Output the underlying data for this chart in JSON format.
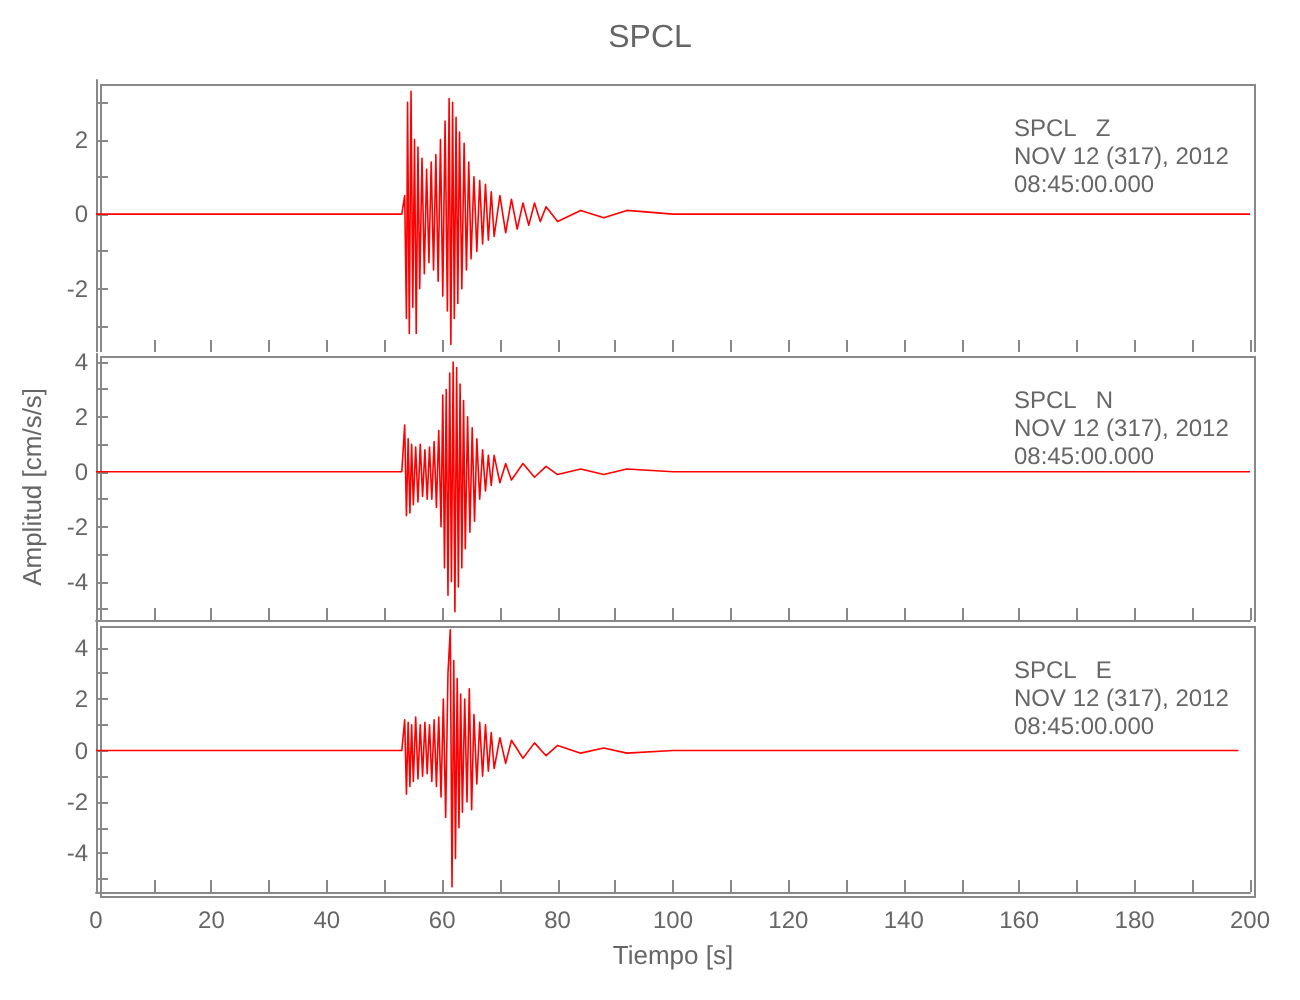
{
  "chart_data": [
    {
      "type": "line",
      "title": "SPCL",
      "color": "#ff0000",
      "marker": "none",
      "tick_labels": "y",
      "annotations": [
        "SPCL   Z",
        "NOV 12 (317), 2012",
        "08:45:00.000"
      ],
      "xlim": [
        0,
        200
      ],
      "xticks": [
        0,
        {
          "value": 10,
          "label": null
        },
        20,
        {
          "value": 30,
          "label": null
        },
        40,
        {
          "value": 50,
          "label": null
        },
        60,
        {
          "value": 70,
          "label": null
        },
        80,
        {
          "value": 90,
          "label": null
        },
        100,
        {
          "value": 110,
          "label": null
        },
        120,
        {
          "value": 130,
          "label": null
        },
        140,
        {
          "value": 150,
          "label": null
        },
        160,
        {
          "value": 170,
          "label": null
        },
        180,
        {
          "value": 190,
          "label": null
        },
        200
      ],
      "ylim": [
        -3.7,
        3.6
      ],
      "yticks": [
        {
          "value": -3,
          "label": null
        },
        -2,
        {
          "value": -1,
          "label": null
        },
        0,
        {
          "value": 1,
          "label": null
        },
        2,
        {
          "value": 3,
          "label": null
        }
      ],
      "x": [
        0,
        20,
        40,
        53,
        53.5,
        53.8,
        54,
        54.3,
        54.6,
        54.9,
        55.2,
        55.5,
        55.8,
        56.1,
        56.5,
        56.9,
        57.3,
        57.7,
        58.1,
        58.5,
        58.9,
        59.3,
        59.7,
        60.1,
        60.5,
        60.9,
        61.2,
        61.5,
        61.8,
        62.1,
        62.4,
        62.7,
        63,
        63.4,
        63.8,
        64.2,
        64.6,
        65,
        65.5,
        66,
        66.5,
        67,
        67.5,
        68,
        68.5,
        69,
        70,
        71,
        72,
        73,
        74,
        75,
        76,
        77,
        78,
        80,
        84,
        88,
        92,
        100,
        200
      ],
      "values": [
        0,
        0,
        0,
        0,
        0.5,
        -2.8,
        3.0,
        -3.2,
        3.3,
        -2.5,
        2.0,
        -3.2,
        1.8,
        -2.0,
        1.5,
        -1.6,
        1.2,
        -1.3,
        1.4,
        -1.5,
        1.6,
        -1.8,
        2.0,
        -2.2,
        2.5,
        -2.6,
        3.1,
        -3.5,
        3.0,
        -2.8,
        2.6,
        -2.4,
        2.2,
        -2.0,
        1.9,
        -1.5,
        1.4,
        -1.2,
        1.0,
        -1.0,
        0.9,
        -0.8,
        0.8,
        -0.7,
        0.6,
        -0.6,
        0.5,
        -0.5,
        0.4,
        -0.4,
        0.3,
        -0.3,
        0.3,
        -0.2,
        0.2,
        -0.2,
        0.1,
        -0.1,
        0.1,
        0,
        0
      ]
    },
    {
      "type": "line",
      "ylabel": "Amplitud [cm/s/s]",
      "color": "#ff0000",
      "marker": "none",
      "tick_labels": "y",
      "annotations": [
        "SPCL   N",
        "NOV 12 (317), 2012",
        "08:45:00.000"
      ],
      "xlim": [
        0,
        200
      ],
      "xticks": [
        0,
        {
          "value": 10,
          "label": null
        },
        20,
        {
          "value": 30,
          "label": null
        },
        40,
        {
          "value": 50,
          "label": null
        },
        60,
        {
          "value": 70,
          "label": null
        },
        80,
        {
          "value": 90,
          "label": null
        },
        100,
        {
          "value": 110,
          "label": null
        },
        120,
        {
          "value": 130,
          "label": null
        },
        140,
        {
          "value": 150,
          "label": null
        },
        160,
        {
          "value": 170,
          "label": null
        },
        180,
        {
          "value": 190,
          "label": null
        },
        200
      ],
      "ylim": [
        -5.4,
        4.3
      ],
      "yticks": [
        {
          "value": -5,
          "label": null
        },
        -4,
        {
          "value": -3,
          "label": null
        },
        -2,
        {
          "value": -1,
          "label": null
        },
        0,
        {
          "value": 1,
          "label": null
        },
        2,
        {
          "value": 3,
          "label": null
        },
        4
      ],
      "x": [
        0,
        20,
        40,
        53,
        53.5,
        53.8,
        54.1,
        54.4,
        54.7,
        55,
        55.4,
        55.8,
        56.2,
        56.6,
        57,
        57.4,
        57.8,
        58.2,
        58.6,
        59,
        59.4,
        59.8,
        60.1,
        60.4,
        60.7,
        61,
        61.3,
        61.6,
        61.9,
        62.2,
        62.5,
        62.8,
        63.1,
        63.4,
        63.7,
        64,
        64.4,
        64.8,
        65.2,
        65.6,
        66,
        66.5,
        67,
        67.5,
        68,
        68.5,
        69,
        70,
        71,
        72,
        74,
        76,
        78,
        80,
        84,
        88,
        92,
        100,
        200
      ],
      "values": [
        0,
        0,
        0,
        0,
        1.7,
        -1.6,
        1.2,
        -1.5,
        1.0,
        -1.2,
        0.9,
        -1.1,
        1.0,
        -0.9,
        0.8,
        -1.0,
        0.9,
        -1.0,
        1.1,
        -1.3,
        1.5,
        -2.0,
        2.8,
        -3.5,
        3.0,
        -4.5,
        3.6,
        -4.0,
        4.0,
        -5.1,
        3.8,
        -4.2,
        3.2,
        -3.5,
        2.6,
        -2.8,
        2.0,
        -2.2,
        1.6,
        -1.8,
        1.2,
        -1.0,
        0.8,
        -0.7,
        0.6,
        -0.5,
        0.6,
        -0.4,
        0.3,
        -0.3,
        0.3,
        -0.2,
        0.2,
        -0.1,
        0.1,
        -0.1,
        0.1,
        0,
        0
      ]
    },
    {
      "type": "line",
      "xlabel": "Tiempo [s]",
      "color": "#ff0000",
      "marker": "none",
      "annotations": [
        "SPCL   E",
        "NOV 12 (317), 2012",
        "08:45:00.000"
      ],
      "xlim": [
        0,
        200
      ],
      "xticks": [
        0,
        {
          "value": 10,
          "label": null
        },
        20,
        {
          "value": 30,
          "label": null
        },
        40,
        {
          "value": 50,
          "label": null
        },
        60,
        {
          "value": 70,
          "label": null
        },
        80,
        {
          "value": 90,
          "label": null
        },
        100,
        {
          "value": 110,
          "label": null
        },
        120,
        {
          "value": 130,
          "label": null
        },
        140,
        {
          "value": 150,
          "label": null
        },
        160,
        {
          "value": 170,
          "label": null
        },
        180,
        {
          "value": 190,
          "label": null
        },
        200
      ],
      "ylim": [
        -5.5,
        5
      ],
      "yticks": [
        {
          "value": -5,
          "label": null
        },
        -4,
        {
          "value": -3,
          "label": null
        },
        -2,
        {
          "value": -1,
          "label": null
        },
        0,
        {
          "value": 1,
          "label": null
        },
        2,
        {
          "value": 3,
          "label": null
        },
        4
      ],
      "x": [
        0,
        20,
        40,
        53,
        53.5,
        53.8,
        54.1,
        54.4,
        54.7,
        55,
        55.4,
        55.8,
        56.2,
        56.6,
        57,
        57.4,
        57.8,
        58.2,
        58.6,
        59,
        59.4,
        59.8,
        60.2,
        60.6,
        61,
        61.4,
        61.7,
        62,
        62.3,
        62.6,
        62.9,
        63.2,
        63.5,
        63.9,
        64.3,
        64.7,
        65.1,
        65.5,
        66,
        66.5,
        67,
        67.5,
        68,
        68.5,
        69,
        70,
        71,
        72,
        74,
        76,
        78,
        80,
        84,
        88,
        92,
        100,
        198
      ],
      "values": [
        0,
        0,
        0,
        0,
        1.2,
        -1.7,
        1.1,
        -1.4,
        1.0,
        -1.2,
        1.3,
        -1.1,
        1.0,
        -1.0,
        1.1,
        -0.9,
        1.0,
        -1.2,
        1.2,
        -1.4,
        1.3,
        -1.8,
        2.0,
        -2.6,
        3.0,
        4.7,
        -5.3,
        3.5,
        -4.2,
        2.8,
        -3.0,
        2.2,
        -2.4,
        2.0,
        -2.0,
        2.4,
        -2.3,
        1.4,
        -1.3,
        1.1,
        -1.0,
        1.0,
        -0.8,
        0.7,
        -0.7,
        0.5,
        -0.5,
        0.4,
        -0.3,
        0.3,
        -0.2,
        0.2,
        -0.1,
        0.1,
        -0.1,
        0,
        0
      ]
    }
  ]
}
